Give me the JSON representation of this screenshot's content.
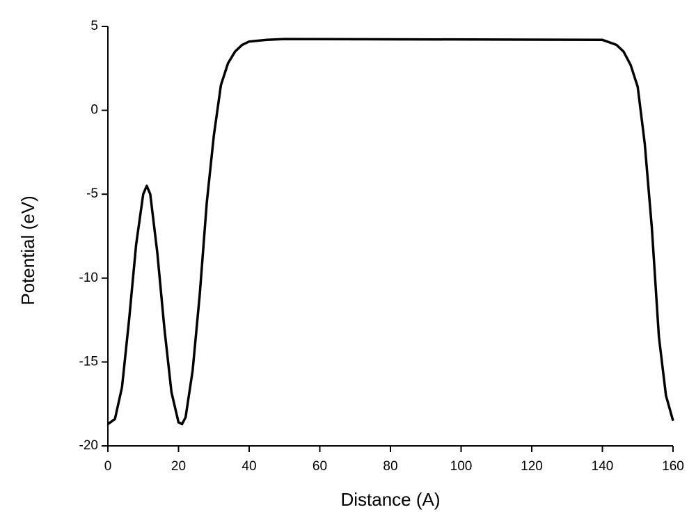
{
  "chart_data": {
    "type": "line",
    "x_label": "Distance (A)",
    "y_label": "Potential (eV)",
    "x": [
      0,
      2,
      4,
      6,
      8,
      10,
      11,
      12,
      14,
      16,
      18,
      20,
      21,
      22,
      24,
      26,
      28,
      30,
      32,
      34,
      36,
      38,
      40,
      45,
      50,
      140,
      144,
      146,
      148,
      150,
      152,
      154,
      156,
      158,
      160
    ],
    "series": [
      {
        "color": "#000000",
        "values": [
          -18.7,
          -18.4,
          -16.5,
          -12.5,
          -8,
          -5,
          -4.5,
          -5,
          -8.5,
          -13,
          -16.8,
          -18.6,
          -18.7,
          -18.3,
          -15.5,
          -11,
          -5.5,
          -1.5,
          1.5,
          2.8,
          3.5,
          3.9,
          4.1,
          4.2,
          4.25,
          4.2,
          3.9,
          3.5,
          2.7,
          1.4,
          -2,
          -7,
          -13.5,
          -17,
          -18.5
        ]
      }
    ],
    "xlim": [
      0,
      160
    ],
    "xticks": [
      0,
      20,
      40,
      60,
      80,
      100,
      120,
      140,
      160
    ],
    "ylim": [
      -20,
      5
    ],
    "yticks": [
      -20,
      -15,
      -10,
      -5,
      0,
      5
    ]
  }
}
